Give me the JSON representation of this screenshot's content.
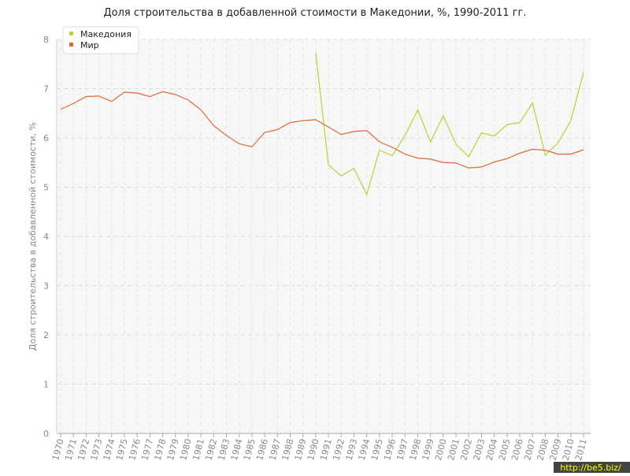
{
  "chart_data": {
    "type": "line",
    "title": "Доля строительства в добавленной стоимости в Македонии, %, 1990-2011 гг.",
    "y_label": "Доля строительства в добавленной стоимости, %",
    "categories": [
      "1970",
      "1971",
      "1972",
      "1973",
      "1974",
      "1975",
      "1976",
      "1977",
      "1978",
      "1979",
      "1980",
      "1981",
      "1982",
      "1983",
      "1984",
      "1985",
      "1986",
      "1987",
      "1988",
      "1989",
      "1990",
      "1991",
      "1992",
      "1993",
      "1994",
      "1995",
      "1996",
      "1997",
      "1998",
      "1999",
      "2000",
      "2001",
      "2002",
      "2003",
      "2004",
      "2005",
      "2006",
      "2007",
      "2008",
      "2009",
      "2010",
      "2011"
    ],
    "series": [
      {
        "name": "Македония",
        "color": "#b5d335",
        "values": [
          null,
          null,
          null,
          null,
          null,
          null,
          null,
          null,
          null,
          null,
          null,
          null,
          null,
          null,
          null,
          null,
          null,
          null,
          null,
          null,
          7.73,
          5.45,
          5.23,
          5.38,
          4.85,
          5.75,
          5.64,
          6.05,
          6.57,
          5.92,
          6.45,
          5.87,
          5.62,
          6.1,
          6.04,
          6.27,
          6.31,
          6.71,
          5.65,
          5.9,
          6.35,
          7.33
        ]
      },
      {
        "name": "Мир",
        "color": "#e0683a",
        "values": [
          6.58,
          6.7,
          6.84,
          6.85,
          6.74,
          6.93,
          6.91,
          6.84,
          6.94,
          6.88,
          6.77,
          6.57,
          6.25,
          6.05,
          5.88,
          5.82,
          6.11,
          6.17,
          6.31,
          6.35,
          6.37,
          6.22,
          6.07,
          6.13,
          6.15,
          5.92,
          5.81,
          5.67,
          5.59,
          5.57,
          5.5,
          5.49,
          5.39,
          5.41,
          5.51,
          5.58,
          5.69,
          5.77,
          5.75,
          5.67,
          5.67,
          5.76
        ]
      }
    ],
    "ylim": [
      0,
      8
    ],
    "yticks": [
      0,
      1,
      2,
      3,
      4,
      5,
      6,
      7,
      8
    ],
    "grid": true,
    "legend": "top-left",
    "watermark": "http://be5.biz/"
  }
}
